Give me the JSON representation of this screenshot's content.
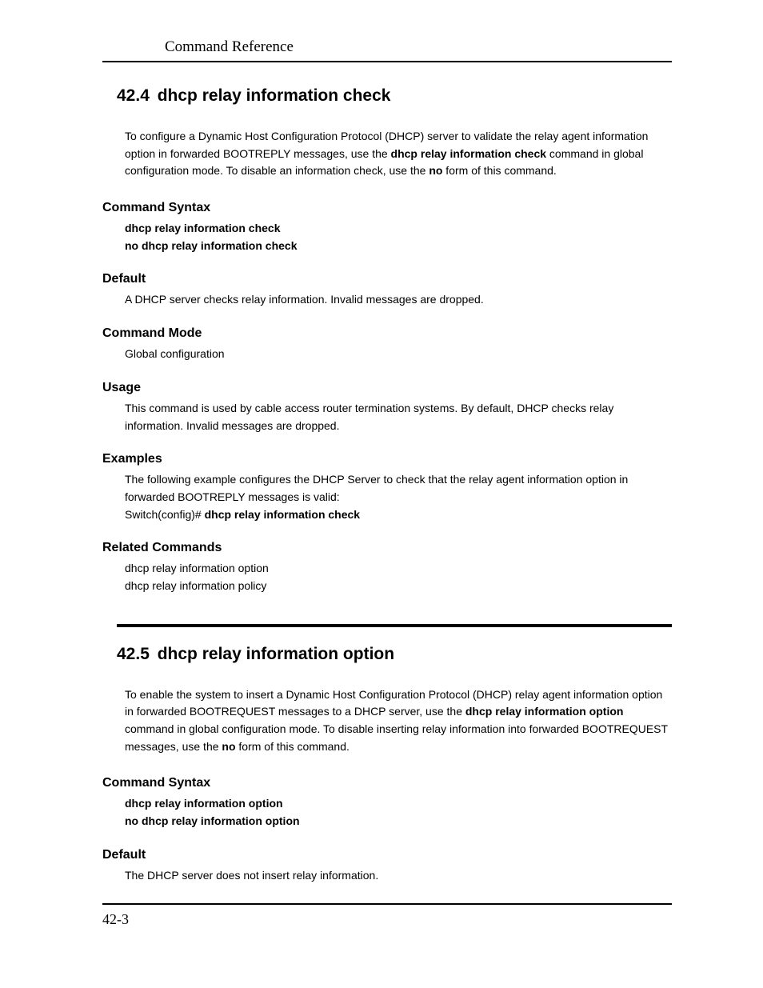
{
  "header": {
    "running": "Command Reference"
  },
  "section1": {
    "number": "42.4",
    "title": "dhcp relay information check",
    "intro_pre": "To configure a Dynamic Host Configuration Protocol (DHCP) server to validate the relay agent information option in forwarded BOOTREPLY messages, use the ",
    "intro_bold1": "dhcp relay information check",
    "intro_mid": " command in global configuration mode. To disable an information check, use the ",
    "intro_bold2": "no",
    "intro_post": " form of this command.",
    "syntax": {
      "heading": "Command Syntax",
      "line1": "dhcp relay information check",
      "line2": "no dhcp relay information check"
    },
    "default": {
      "heading": "Default",
      "body": "A DHCP server checks relay information. Invalid messages are dropped."
    },
    "mode": {
      "heading": "Command Mode",
      "body": "Global configuration"
    },
    "usage": {
      "heading": "Usage",
      "body": "This command is used by cable access router termination systems. By default, DHCP checks relay information. Invalid messages are dropped."
    },
    "examples": {
      "heading": "Examples",
      "body": "The following example configures the DHCP Server to check that the relay agent information option in forwarded BOOTREPLY messages is valid:",
      "cmd_prefix": "Switch(config)# ",
      "cmd_bold": "dhcp relay information check"
    },
    "related": {
      "heading": "Related Commands",
      "line1": "dhcp relay information option",
      "line2": "dhcp relay information policy"
    }
  },
  "section2": {
    "number": "42.5",
    "title": "dhcp relay information option",
    "intro_pre": "To enable the system to insert a Dynamic Host Configuration Protocol (DHCP) relay agent information option in forwarded BOOTREQUEST messages to a DHCP server, use the ",
    "intro_bold1": "dhcp relay information option",
    "intro_mid": " command in global configuration mode. To disable inserting relay information into forwarded BOOTREQUEST messages, use the ",
    "intro_bold2": "no",
    "intro_post": " form of this command.",
    "syntax": {
      "heading": "Command Syntax",
      "line1": "dhcp relay information option",
      "line2": "no dhcp relay information option"
    },
    "default": {
      "heading": "Default",
      "body": "The DHCP server does not insert relay information."
    }
  },
  "footer": {
    "pagenum": "42-3"
  }
}
